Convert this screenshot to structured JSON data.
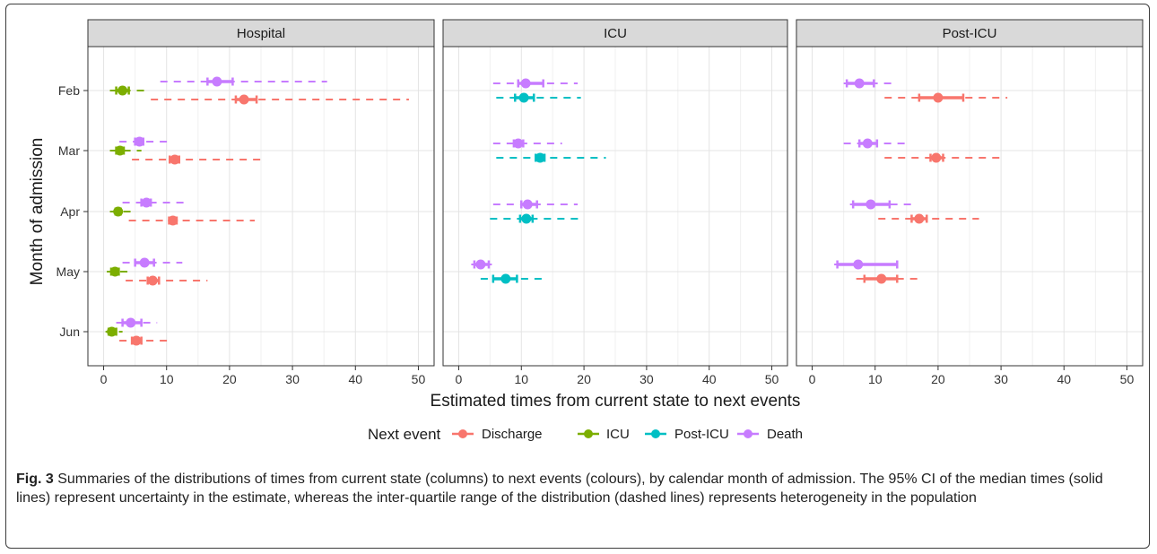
{
  "caption": {
    "label": "Fig. 3",
    "text": "Summaries of the distributions of times from current state (columns) to next events (colours), by calendar month of admission. The 95% CI of the median times (solid lines) represent uncertainty in the estimate, whereas the inter-quartile range of the distribution (dashed lines) represents heterogeneity in the population"
  },
  "legend": {
    "title": "Next event"
  },
  "colors": {
    "Discharge": "#F8766D",
    "ICU": "#7CAE00",
    "Post-ICU": "#00BFC4",
    "Death": "#C77CFF"
  },
  "chart_data": {
    "type": "interval-dot",
    "xlabel": "Estimated times from current state to next events",
    "ylabel": "Month of admission",
    "xlim": [
      -2.5,
      52.5
    ],
    "xticks": [
      0,
      10,
      20,
      30,
      40,
      50
    ],
    "categories": [
      "Feb",
      "Mar",
      "Apr",
      "May",
      "Jun"
    ],
    "events": [
      "Discharge",
      "ICU",
      "Post-ICU",
      "Death"
    ],
    "grid": true,
    "legend_position": "bottom",
    "facets": [
      {
        "name": "Hospital",
        "points": [
          {
            "month": "Feb",
            "event": "Death",
            "median": 18,
            "ci": [
              16.5,
              20.5
            ],
            "iqr": [
              9,
              35.5
            ]
          },
          {
            "month": "Feb",
            "event": "ICU",
            "median": 3,
            "ci": [
              2,
              4
            ],
            "iqr": [
              1,
              7
            ]
          },
          {
            "month": "Feb",
            "event": "Discharge",
            "median": 22.3,
            "ci": [
              21,
              24.3
            ],
            "iqr": [
              7.5,
              48.5
            ]
          },
          {
            "month": "Mar",
            "event": "Death",
            "median": 5.7,
            "ci": [
              5,
              6.3
            ],
            "iqr": [
              2.5,
              10.5
            ]
          },
          {
            "month": "Mar",
            "event": "ICU",
            "median": 2.6,
            "ci": [
              2,
              3.2
            ],
            "iqr": [
              1,
              6
            ]
          },
          {
            "month": "Mar",
            "event": "Discharge",
            "median": 11.3,
            "ci": [
              10.5,
              12
            ],
            "iqr": [
              4.5,
              25
            ]
          },
          {
            "month": "Apr",
            "event": "Death",
            "median": 6.8,
            "ci": [
              6,
              7.5
            ],
            "iqr": [
              3,
              13
            ]
          },
          {
            "month": "Apr",
            "event": "ICU",
            "median": 2.3,
            "ci": [
              1.9,
              2.7
            ],
            "iqr": [
              1,
              5
            ]
          },
          {
            "month": "Apr",
            "event": "Discharge",
            "median": 11,
            "ci": [
              10.4,
              11.6
            ],
            "iqr": [
              4,
              24
            ]
          },
          {
            "month": "May",
            "event": "Death",
            "median": 6.5,
            "ci": [
              5,
              8
            ],
            "iqr": [
              3,
              12.5
            ]
          },
          {
            "month": "May",
            "event": "ICU",
            "median": 1.8,
            "ci": [
              1.2,
              2.4
            ],
            "iqr": [
              0.5,
              4
            ]
          },
          {
            "month": "May",
            "event": "Discharge",
            "median": 7.8,
            "ci": [
              7,
              8.8
            ],
            "iqr": [
              3.5,
              16.5
            ]
          },
          {
            "month": "Jun",
            "event": "Death",
            "median": 4.3,
            "ci": [
              3,
              6
            ],
            "iqr": [
              2,
              8.5
            ]
          },
          {
            "month": "Jun",
            "event": "ICU",
            "median": 1.3,
            "ci": [
              0.8,
              2
            ],
            "iqr": [
              0.3,
              3
            ]
          },
          {
            "month": "Jun",
            "event": "Discharge",
            "median": 5.2,
            "ci": [
              4.5,
              6
            ],
            "iqr": [
              2.5,
              11
            ]
          }
        ]
      },
      {
        "name": "ICU",
        "points": [
          {
            "month": "Feb",
            "event": "Death",
            "median": 10.7,
            "ci": [
              9.5,
              13.5
            ],
            "iqr": [
              5.5,
              19
            ]
          },
          {
            "month": "Feb",
            "event": "Post-ICU",
            "median": 10.4,
            "ci": [
              9,
              12
            ],
            "iqr": [
              6,
              19.5
            ]
          },
          {
            "month": "Mar",
            "event": "Death",
            "median": 9.5,
            "ci": [
              8.8,
              10.3
            ],
            "iqr": [
              5.5,
              16.5
            ]
          },
          {
            "month": "Mar",
            "event": "Post-ICU",
            "median": 13,
            "ci": [
              12.3,
              13.7
            ],
            "iqr": [
              6,
              23.5
            ]
          },
          {
            "month": "Apr",
            "event": "Death",
            "median": 11,
            "ci": [
              10,
              12.5
            ],
            "iqr": [
              5.5,
              19
            ]
          },
          {
            "month": "Apr",
            "event": "Post-ICU",
            "median": 10.8,
            "ci": [
              9.8,
              11.8
            ],
            "iqr": [
              5,
              19.5
            ]
          },
          {
            "month": "May",
            "event": "Death",
            "median": 3.5,
            "ci": [
              2.5,
              4.8
            ],
            "iqr": [
              2,
              6
            ]
          },
          {
            "month": "May",
            "event": "Post-ICU",
            "median": 7.5,
            "ci": [
              5.5,
              9.3
            ],
            "iqr": [
              3.5,
              14
            ]
          }
        ]
      },
      {
        "name": "Post-ICU",
        "points": [
          {
            "month": "Feb",
            "event": "Death",
            "median": 7.5,
            "ci": [
              5.5,
              9.8
            ],
            "iqr": [
              5,
              13.5
            ]
          },
          {
            "month": "Feb",
            "event": "Discharge",
            "median": 20,
            "ci": [
              17,
              24
            ],
            "iqr": [
              11.5,
              31
            ]
          },
          {
            "month": "Mar",
            "event": "Death",
            "median": 8.8,
            "ci": [
              7.5,
              10.3
            ],
            "iqr": [
              5,
              15.5
            ]
          },
          {
            "month": "Mar",
            "event": "Discharge",
            "median": 19.7,
            "ci": [
              18.8,
              20.8
            ],
            "iqr": [
              11.5,
              30.5
            ]
          },
          {
            "month": "Apr",
            "event": "Death",
            "median": 9.3,
            "ci": [
              6.5,
              12.3
            ],
            "iqr": [
              6,
              16.5
            ]
          },
          {
            "month": "Apr",
            "event": "Discharge",
            "median": 17,
            "ci": [
              15.8,
              18.2
            ],
            "iqr": [
              10.5,
              26.5
            ]
          },
          {
            "month": "May",
            "event": "Death",
            "median": 7.3,
            "ci": [
              4,
              13.5
            ],
            "iqr": [
              3.5,
              14
            ]
          },
          {
            "month": "May",
            "event": "Discharge",
            "median": 11,
            "ci": [
              8.3,
              13.5
            ],
            "iqr": [
              7,
              17.5
            ]
          }
        ]
      }
    ]
  }
}
